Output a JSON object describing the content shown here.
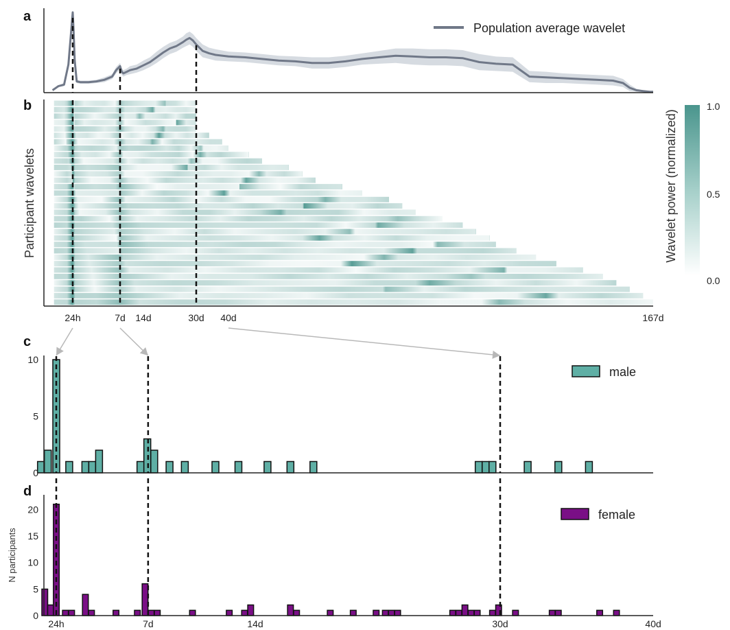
{
  "colors": {
    "male": "#5fafa5",
    "female": "#7a0f86",
    "avg_line": "#707888",
    "avg_band": "#d6dbe1",
    "heat_high": "#4a958d",
    "arrow": "#b8b8b8",
    "dashed": "#111111"
  },
  "panels": {
    "a": "a",
    "b": "b",
    "c": "c",
    "d": "d"
  },
  "chart_data": [
    {
      "id": "a",
      "type": "line",
      "legend": "Population average wavelet",
      "legend_position": "top-right",
      "series": [
        {
          "name": "Population average wavelet",
          "x_period_days": [
            0.3,
            0.5,
            0.7,
            0.85,
            1.0,
            1.1,
            1.25,
            1.5,
            2,
            3,
            4,
            5,
            6,
            6.5,
            7,
            7.5,
            8,
            9,
            10,
            12,
            14,
            16,
            18,
            20,
            22,
            24,
            26,
            27,
            28,
            29,
            30,
            31,
            32,
            34,
            36,
            40,
            45,
            50,
            55,
            60,
            65,
            70,
            75,
            80,
            85,
            90,
            95,
            100,
            105,
            110,
            115,
            120,
            125,
            130,
            135,
            140,
            145,
            150,
            155,
            158,
            160,
            162,
            164,
            166,
            167
          ],
          "y": [
            0.03,
            0.08,
            0.1,
            0.35,
            1.0,
            0.78,
            0.4,
            0.14,
            0.13,
            0.13,
            0.14,
            0.16,
            0.2,
            0.28,
            0.33,
            0.26,
            0.24,
            0.26,
            0.28,
            0.3,
            0.34,
            0.38,
            0.44,
            0.5,
            0.55,
            0.58,
            0.63,
            0.66,
            0.68,
            0.65,
            0.6,
            0.56,
            0.52,
            0.49,
            0.47,
            0.45,
            0.44,
            0.42,
            0.4,
            0.39,
            0.37,
            0.37,
            0.39,
            0.42,
            0.44,
            0.46,
            0.45,
            0.44,
            0.44,
            0.43,
            0.38,
            0.36,
            0.35,
            0.2,
            0.19,
            0.18,
            0.17,
            0.16,
            0.15,
            0.12,
            0.06,
            0.03,
            0.02,
            0.01,
            0.01
          ],
          "band": [
            0.0,
            0.01,
            0.02,
            0.03,
            0.03,
            0.03,
            0.02,
            0.02,
            0.02,
            0.02,
            0.02,
            0.03,
            0.03,
            0.04,
            0.04,
            0.04,
            0.04,
            0.04,
            0.05,
            0.05,
            0.06,
            0.06,
            0.07,
            0.07,
            0.07,
            0.07,
            0.07,
            0.08,
            0.08,
            0.08,
            0.08,
            0.08,
            0.08,
            0.07,
            0.07,
            0.06,
            0.06,
            0.06,
            0.06,
            0.06,
            0.07,
            0.07,
            0.07,
            0.07,
            0.08,
            0.09,
            0.1,
            0.1,
            0.1,
            0.1,
            0.1,
            0.09,
            0.09,
            0.07,
            0.07,
            0.06,
            0.06,
            0.06,
            0.06,
            0.05,
            0.04,
            0.02,
            0.01,
            0.01,
            0.01
          ]
        }
      ],
      "markers_days": [
        1,
        7,
        30
      ]
    },
    {
      "id": "b",
      "type": "heatmap",
      "ylabel": "Participant wavelets",
      "colorbar_label": "Wavelet power (normalized)",
      "colorbar_ticks": [
        "1.0",
        "0.5",
        "0.0"
      ],
      "x_ticks": [
        {
          "label": "24h",
          "day": 1
        },
        {
          "label": "7d",
          "day": 7
        },
        {
          "label": "14d",
          "day": 14
        },
        {
          "label": "30d",
          "day": 30
        },
        {
          "label": "40d",
          "day": 40
        },
        {
          "label": "167d",
          "day": 167
        }
      ],
      "row_end_days": [
        30,
        30,
        30,
        30,
        30,
        34,
        38,
        40,
        46,
        50,
        58,
        62,
        66,
        74,
        80,
        88,
        92,
        96,
        104,
        110,
        114,
        118,
        120,
        126,
        132,
        138,
        146,
        152,
        156,
        160,
        164,
        167
      ],
      "markers_days": [
        1,
        7,
        30
      ]
    },
    {
      "id": "c",
      "type": "bar",
      "legend": "male",
      "legend_position": "top-right",
      "ylim": [
        0,
        10
      ],
      "y_ticks": [
        "0",
        "5",
        "10"
      ],
      "bin_width_days": 0.45,
      "bars": [
        {
          "x": 0.0,
          "y": 1
        },
        {
          "x": 0.45,
          "y": 2
        },
        {
          "x": 1.0,
          "y": 10
        },
        {
          "x": 1.85,
          "y": 1
        },
        {
          "x": 2.9,
          "y": 1
        },
        {
          "x": 3.35,
          "y": 1
        },
        {
          "x": 3.8,
          "y": 2
        },
        {
          "x": 6.5,
          "y": 1
        },
        {
          "x": 6.95,
          "y": 3
        },
        {
          "x": 7.4,
          "y": 2
        },
        {
          "x": 8.4,
          "y": 1
        },
        {
          "x": 9.4,
          "y": 1
        },
        {
          "x": 11.4,
          "y": 1
        },
        {
          "x": 12.9,
          "y": 1
        },
        {
          "x": 14.8,
          "y": 1
        },
        {
          "x": 16.3,
          "y": 1
        },
        {
          "x": 17.8,
          "y": 1
        },
        {
          "x": 28.6,
          "y": 1
        },
        {
          "x": 29.05,
          "y": 1
        },
        {
          "x": 29.5,
          "y": 1
        },
        {
          "x": 31.8,
          "y": 1
        },
        {
          "x": 33.8,
          "y": 1
        },
        {
          "x": 35.8,
          "y": 1
        }
      ],
      "markers_days": [
        1,
        7,
        30
      ]
    },
    {
      "id": "d",
      "type": "bar",
      "legend": "female",
      "legend_position": "top-right",
      "ylabel": "N participants",
      "ylim": [
        0,
        22
      ],
      "y_ticks": [
        "0",
        "5",
        "10",
        "15",
        "20"
      ],
      "x_ticks": [
        {
          "label": "24h",
          "day": 1
        },
        {
          "label": "7d",
          "day": 7
        },
        {
          "label": "14d",
          "day": 14
        },
        {
          "label": "30d",
          "day": 30
        },
        {
          "label": "40d",
          "day": 40
        }
      ],
      "bin_width_days": 0.38,
      "bars": [
        {
          "x": 0.25,
          "y": 5
        },
        {
          "x": 0.63,
          "y": 2
        },
        {
          "x": 1.0,
          "y": 21
        },
        {
          "x": 1.6,
          "y": 1
        },
        {
          "x": 2.0,
          "y": 1
        },
        {
          "x": 2.9,
          "y": 4
        },
        {
          "x": 3.3,
          "y": 1
        },
        {
          "x": 4.9,
          "y": 1
        },
        {
          "x": 6.3,
          "y": 1
        },
        {
          "x": 6.8,
          "y": 6
        },
        {
          "x": 7.2,
          "y": 1
        },
        {
          "x": 7.6,
          "y": 1
        },
        {
          "x": 9.9,
          "y": 1
        },
        {
          "x": 12.3,
          "y": 1
        },
        {
          "x": 13.3,
          "y": 1
        },
        {
          "x": 13.7,
          "y": 2
        },
        {
          "x": 16.3,
          "y": 2
        },
        {
          "x": 16.7,
          "y": 1
        },
        {
          "x": 18.9,
          "y": 1
        },
        {
          "x": 20.4,
          "y": 1
        },
        {
          "x": 21.9,
          "y": 1
        },
        {
          "x": 22.5,
          "y": 1
        },
        {
          "x": 22.9,
          "y": 1
        },
        {
          "x": 23.3,
          "y": 1
        },
        {
          "x": 26.9,
          "y": 1
        },
        {
          "x": 27.3,
          "y": 1
        },
        {
          "x": 27.7,
          "y": 2
        },
        {
          "x": 28.1,
          "y": 1
        },
        {
          "x": 28.5,
          "y": 1
        },
        {
          "x": 29.5,
          "y": 1
        },
        {
          "x": 29.9,
          "y": 2
        },
        {
          "x": 31.0,
          "y": 1
        },
        {
          "x": 33.4,
          "y": 1
        },
        {
          "x": 33.8,
          "y": 1
        },
        {
          "x": 36.5,
          "y": 1
        },
        {
          "x": 37.6,
          "y": 1
        }
      ],
      "markers_days": [
        1,
        7,
        30
      ]
    }
  ]
}
